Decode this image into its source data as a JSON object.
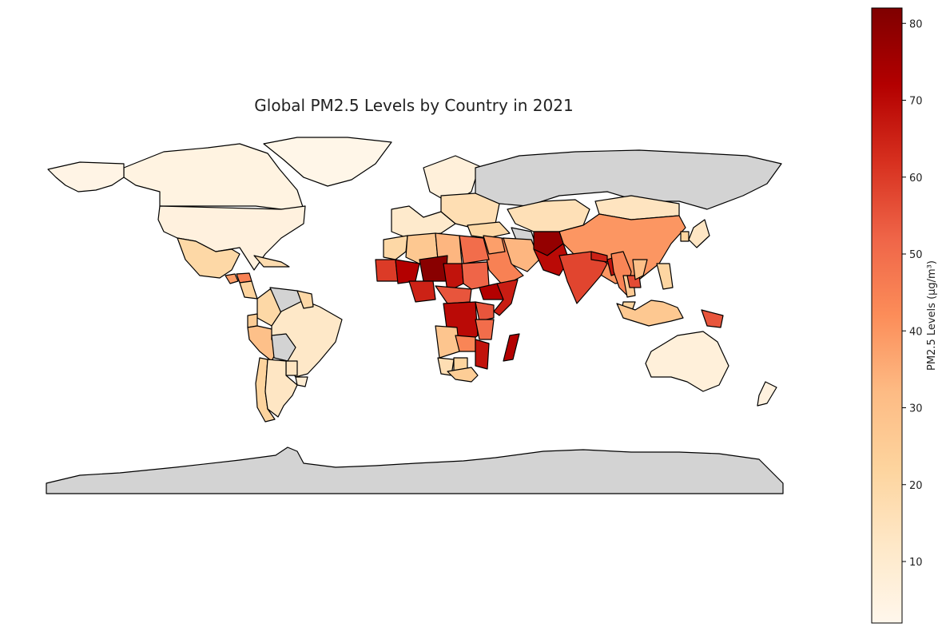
{
  "chart_data": {
    "type": "choropleth",
    "title": "Global PM2.5 Levels by Country in 2021",
    "colorbar": {
      "label": "PM2.5 Levels (µg/m³)",
      "min": 2,
      "max": 82,
      "ticks": [
        10,
        20,
        30,
        40,
        50,
        60,
        70,
        80
      ],
      "colormap": "OrRd",
      "orientation": "vertical",
      "placement": "right"
    },
    "no_data_color": "#d3d3d3",
    "regions": [
      {
        "name": "Canada",
        "value": 5
      },
      {
        "name": "United States",
        "value": 6
      },
      {
        "name": "Greenland",
        "value": 3
      },
      {
        "name": "Alaska",
        "value": 4
      },
      {
        "name": "Mexico",
        "value": 20
      },
      {
        "name": "Guatemala",
        "value": 38
      },
      {
        "name": "Honduras",
        "value": 45
      },
      {
        "name": "Nicaragua",
        "value": 22
      },
      {
        "name": "Cuba",
        "value": 18
      },
      {
        "name": "Colombia",
        "value": 20
      },
      {
        "name": "Venezuela",
        "value": null
      },
      {
        "name": "Ecuador",
        "value": 25
      },
      {
        "name": "Peru",
        "value": 30
      },
      {
        "name": "Brazil",
        "value": 12
      },
      {
        "name": "Bolivia",
        "value": null
      },
      {
        "name": "Paraguay",
        "value": 14
      },
      {
        "name": "Uruguay",
        "value": 9
      },
      {
        "name": "Chile",
        "value": 22
      },
      {
        "name": "Argentina",
        "value": 13
      },
      {
        "name": "Guyana",
        "value": 20
      },
      {
        "name": "Western Europe",
        "value": 11
      },
      {
        "name": "Scandinavia",
        "value": 7
      },
      {
        "name": "Eastern Europe",
        "value": 17
      },
      {
        "name": "Russia",
        "value": null
      },
      {
        "name": "Kazakhstan",
        "value": 16
      },
      {
        "name": "Mongolia",
        "value": 14
      },
      {
        "name": "China",
        "value": 40
      },
      {
        "name": "Japan",
        "value": 13
      },
      {
        "name": "South Korea",
        "value": 22
      },
      {
        "name": "Turkmenistan",
        "value": null
      },
      {
        "name": "Iran",
        "value": 33
      },
      {
        "name": "Turkey",
        "value": 20
      },
      {
        "name": "Saudi Arabia",
        "value": 45
      },
      {
        "name": "Iraq",
        "value": 38
      },
      {
        "name": "Afghanistan",
        "value": 78
      },
      {
        "name": "Pakistan",
        "value": 70
      },
      {
        "name": "India",
        "value": 58
      },
      {
        "name": "Nepal",
        "value": 65
      },
      {
        "name": "Bangladesh",
        "value": 68
      },
      {
        "name": "Myanmar",
        "value": 44
      },
      {
        "name": "Thailand",
        "value": 26
      },
      {
        "name": "Cambodia",
        "value": 57
      },
      {
        "name": "Vietnam",
        "value": 30
      },
      {
        "name": "Malaysia",
        "value": 22
      },
      {
        "name": "Indonesia",
        "value": 27
      },
      {
        "name": "Philippines",
        "value": 21
      },
      {
        "name": "Papua New Guinea",
        "value": 55
      },
      {
        "name": "Australia",
        "value": 7
      },
      {
        "name": "New Zealand",
        "value": 6
      },
      {
        "name": "Morocco",
        "value": 20
      },
      {
        "name": "Algeria",
        "value": 27
      },
      {
        "name": "Libya",
        "value": 33
      },
      {
        "name": "Egypt",
        "value": 50
      },
      {
        "name": "Mauritania",
        "value": 60
      },
      {
        "name": "Mali",
        "value": 72
      },
      {
        "name": "Niger",
        "value": 80
      },
      {
        "name": "Chad",
        "value": 68
      },
      {
        "name": "Sudan",
        "value": 52
      },
      {
        "name": "Ethiopia",
        "value": 72
      },
      {
        "name": "Somalia",
        "value": 66
      },
      {
        "name": "Nigeria",
        "value": 65
      },
      {
        "name": "Central African Republic",
        "value": 55
      },
      {
        "name": "DR Congo",
        "value": 70
      },
      {
        "name": "Kenya",
        "value": 55
      },
      {
        "name": "Tanzania",
        "value": 50
      },
      {
        "name": "Angola",
        "value": 28
      },
      {
        "name": "Zambia",
        "value": 44
      },
      {
        "name": "Mozambique",
        "value": 68
      },
      {
        "name": "Namibia",
        "value": 17
      },
      {
        "name": "Botswana",
        "value": 22
      },
      {
        "name": "South Africa",
        "value": 25
      },
      {
        "name": "Madagascar",
        "value": 72
      },
      {
        "name": "Antarctica",
        "value": null
      }
    ]
  }
}
